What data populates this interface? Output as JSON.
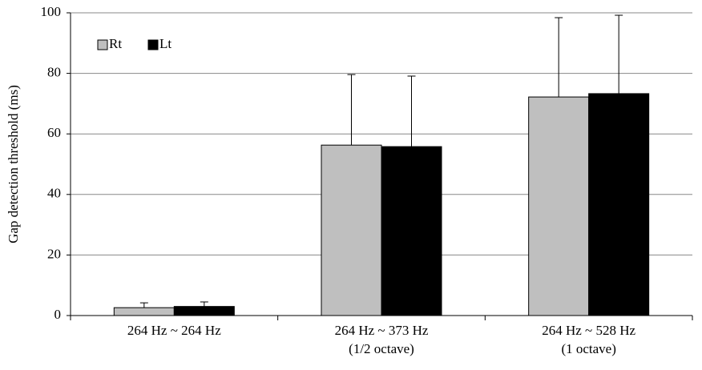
{
  "chart_data": {
    "type": "bar",
    "y_label": "Gap detection threshold (ms)",
    "categories": [
      [
        "264 Hz ~ 264 Hz"
      ],
      [
        "264 Hz ~ 373 Hz",
        "(1/2 octave)"
      ],
      [
        "264 Hz ~ 528 Hz",
        "(1 octave)"
      ]
    ],
    "series": [
      {
        "name": "Rt",
        "color": "#bfbfbf",
        "values": [
          2.6,
          56.3,
          72.2
        ],
        "errors": [
          1.6,
          23.3,
          26.2
        ]
      },
      {
        "name": "Lt",
        "color": "#000000",
        "values": [
          3.0,
          55.8,
          73.3
        ],
        "errors": [
          1.5,
          23.3,
          25.9
        ]
      }
    ],
    "ylim": [
      0,
      100
    ],
    "yticks": [
      0,
      20,
      40,
      60,
      80,
      100
    ],
    "grid": true,
    "legend": "top-left"
  }
}
